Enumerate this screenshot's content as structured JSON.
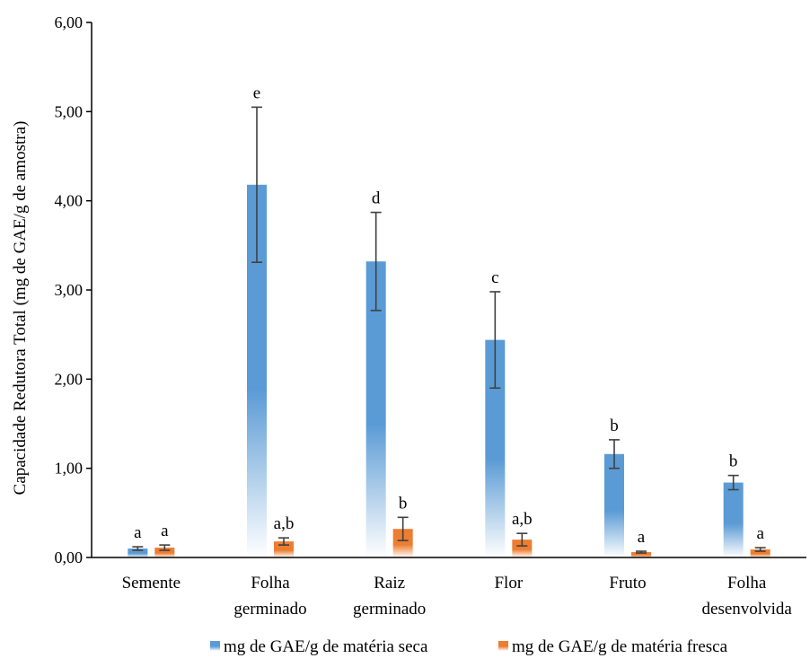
{
  "chart_data": {
    "type": "bar",
    "ylabel": "Capacidade Redutora Total (mg de GAE/g de amostra)",
    "ylim": [
      0,
      6
    ],
    "yticks": [
      "0,00",
      "1,00",
      "2,00",
      "3,00",
      "4,00",
      "5,00",
      "6,00"
    ],
    "categories": [
      [
        "Semente"
      ],
      [
        "Folha",
        "germinado"
      ],
      [
        "Raiz",
        "germinado"
      ],
      [
        "Flor"
      ],
      [
        "Fruto"
      ],
      [
        "Folha",
        "desenvolvida"
      ]
    ],
    "series": [
      {
        "name": "mg de GAE/g de matéria seca",
        "color": "#5b9bd5",
        "values": [
          0.1,
          4.18,
          3.32,
          2.44,
          1.16,
          0.84
        ],
        "errors": [
          0.02,
          0.87,
          0.55,
          0.54,
          0.16,
          0.08
        ],
        "labels": [
          "a",
          "e",
          "d",
          "c",
          "b",
          "b"
        ]
      },
      {
        "name": "mg de GAE/g de matéria fresca",
        "color": "#ed7d31",
        "values": [
          0.11,
          0.18,
          0.32,
          0.2,
          0.06,
          0.09
        ],
        "errors": [
          0.03,
          0.04,
          0.13,
          0.07,
          0.01,
          0.02
        ],
        "labels": [
          "a",
          "a,b",
          "b",
          "a,b",
          "a",
          "a"
        ]
      }
    ],
    "legend_position": "bottom",
    "grid": false
  }
}
